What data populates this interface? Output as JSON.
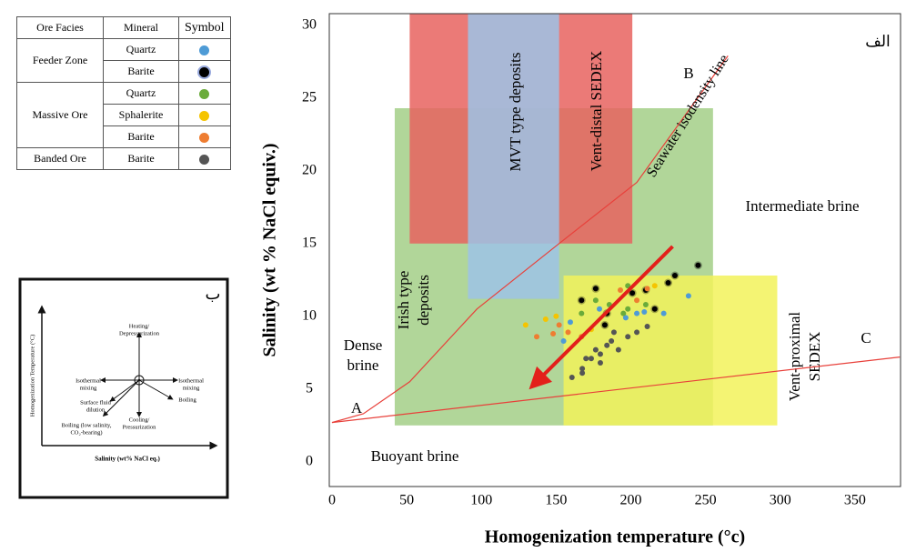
{
  "chart_data": {
    "type": "scatter",
    "x_label": "Homogenization temperature (°c)",
    "y_label": "Salinity (wt % NaCl equiv.)",
    "xlim": [
      -1.8,
      380.5
    ],
    "ylim": [
      -1.7,
      30.8
    ],
    "xticks": [
      0,
      50,
      100,
      150,
      200,
      250,
      300,
      350
    ],
    "yticks": [
      0,
      5,
      10,
      15,
      20,
      25,
      30
    ],
    "regions": [
      {
        "label": [
          "Irish type",
          "deposits"
        ],
        "color": "#a9d18e",
        "x": [
          42,
          255
        ],
        "y": [
          2.5,
          24.3
        ]
      },
      {
        "label": [
          "Vent-distal SEDEX"
        ],
        "color": "#e8635f",
        "x": [
          52,
          201
        ],
        "y": [
          15,
          30.8
        ]
      },
      {
        "label": [
          "MVT type deposits"
        ],
        "color": "#9dc3e6",
        "x": [
          91,
          152
        ],
        "y": [
          11.2,
          30.8
        ]
      },
      {
        "label": [
          "Vent-proximal",
          "SEDEX"
        ],
        "color": "#f2f25a",
        "x": [
          155,
          298
        ],
        "y": [
          2.5,
          12.8
        ]
      }
    ],
    "lines": [
      {
        "color": "#e8403a",
        "x": [
          0,
          21,
          52,
          97,
          152,
          204,
          265
        ],
        "values": [
          2.7,
          3.3,
          5.5,
          10.5,
          15,
          19.2,
          27.9
        ]
      },
      {
        "color": "#e8403a",
        "x": [
          0,
          380
        ],
        "values": [
          2.7,
          7.2
        ]
      }
    ],
    "arrow": {
      "color": "#e3201b",
      "x": [
        228,
        137
      ],
      "values": [
        14.8,
        5.5
      ]
    },
    "annotations": [
      "الف",
      "B",
      "Seawater isodensity line",
      "Intermediate brine",
      "C",
      "A",
      "Buoyant brine",
      [
        "Dense",
        "brine"
      ]
    ],
    "legend_header": [
      "Ore Facies",
      "Mineral",
      "Symbol"
    ],
    "groups": [
      {
        "name": "Feeder Zone",
        "series": [
          {
            "name": "Quartz",
            "color": "#4e9bd6",
            "x": [
              159.5,
              204,
              209,
              222,
              238.6,
              179,
              155,
              196.6
            ],
            "values": [
              9.6,
              10.2,
              10.3,
              10.2,
              11.4,
              10.5,
              8.3,
              9.9
            ]
          },
          {
            "name": "Barite",
            "color": "#000000",
            "x": [
              176.5,
              184,
              201,
              210,
              225,
              229.5,
              245,
              216,
              182.6,
              167
            ],
            "values": [
              11.9,
              10.2,
              11.6,
              11.8,
              12.3,
              12.8,
              13.5,
              10.5,
              9.4,
              11.1
            ]
          }
        ]
      },
      {
        "name": "Massive Ore",
        "series": [
          {
            "name": "Quartz",
            "color": "#6aab3a",
            "x": [
              167,
              195,
              198,
              185.6,
              210,
              176.5,
              198
            ],
            "values": [
              10.2,
              10.2,
              10.5,
              10.8,
              10.8,
              11.1,
              12.1
            ]
          },
          {
            "name": "Sphalerite",
            "color": "#f5c400",
            "x": [
              129.6,
              143,
              150,
              173.5,
              216
            ],
            "values": [
              9.4,
              9.8,
              10,
              9.1,
              12.1
            ]
          },
          {
            "name": "Barite",
            "color": "#ee7d31",
            "x": [
              137,
              148,
              167,
              152,
              193,
              211,
              204,
              158
            ],
            "values": [
              8.6,
              8.8,
              8.6,
              9.4,
              11.8,
              11.9,
              11.1,
              8.9
            ]
          }
        ]
      },
      {
        "name": "Banded Ore",
        "series": [
          {
            "name": "Barite",
            "color": "#555555",
            "x": [
              160.6,
              167.5,
              173.5,
              179.6,
              184,
              187,
              191.7,
              198,
              204,
              211,
              170,
              176.5,
              167.5,
              188.7,
              179.6
            ],
            "values": [
              5.8,
              6.4,
              7.1,
              7.4,
              8,
              8.3,
              7.7,
              8.6,
              8.9,
              9.3,
              7.1,
              7.7,
              6.1,
              8.9,
              6.8
            ]
          }
        ]
      }
    ]
  },
  "inset": {
    "label": "ب",
    "y_axis": "Homogenization Temperature (°C)",
    "x_axis": "Salinity (wt% NaCl eq.)",
    "processes": [
      [
        "Heating/",
        "Depressurization"
      ],
      [
        "Isothermal",
        "mixing"
      ],
      [
        "Isothermal",
        "mixing"
      ],
      [
        "Surface fluid",
        "dilution"
      ],
      [
        "Boiling"
      ],
      [
        "Boiling (low salinity,",
        "CO₂-bearing)"
      ],
      [
        "Cooling/",
        "Pressurization"
      ]
    ]
  }
}
